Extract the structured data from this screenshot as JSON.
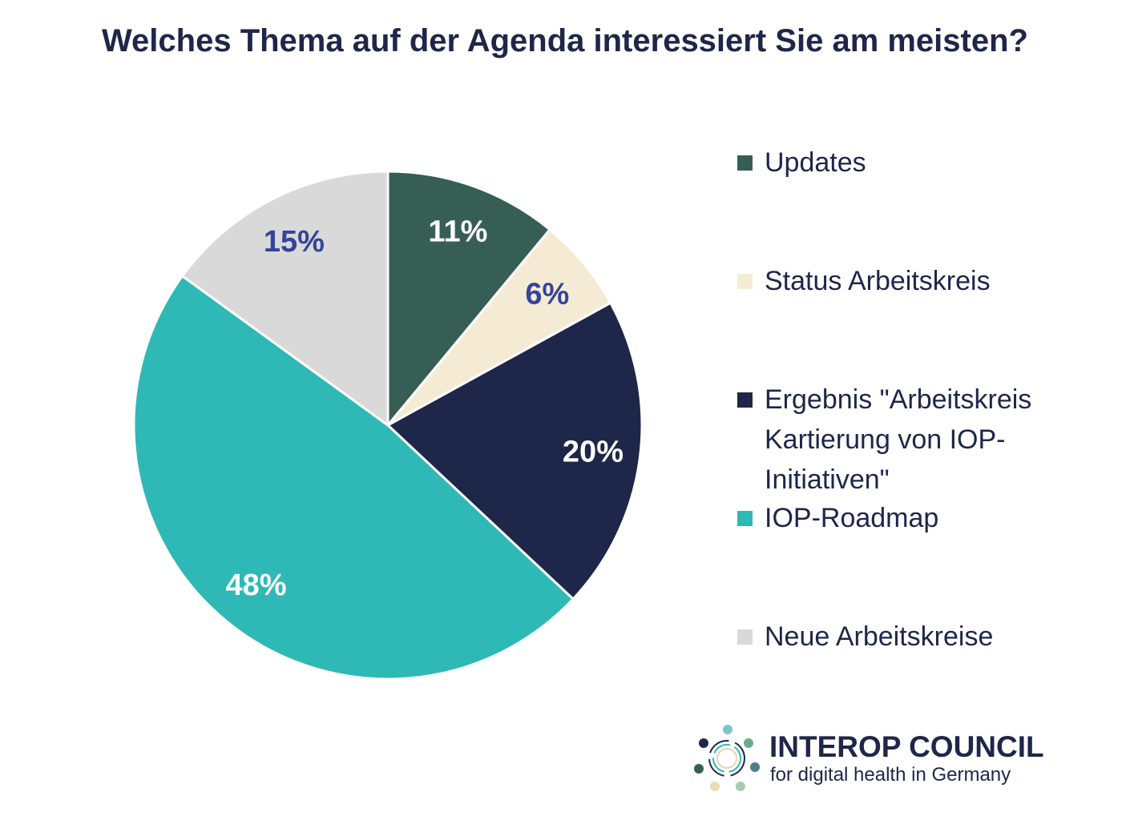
{
  "chart_data": {
    "type": "pie",
    "title": "Welches Thema auf der Agenda interessiert Sie am meisten?",
    "start": "12 o'clock, clockwise",
    "legend_position": "right",
    "slices": [
      {
        "label": "Updates",
        "value": 11,
        "display": "11%",
        "color": "#375E55",
        "label_color": "#FFFFFF"
      },
      {
        "label": "Status Arbeitskreis",
        "value": 6,
        "display": "6%",
        "color": "#F5EBD4",
        "label_color": "#34449A"
      },
      {
        "label": "Ergebnis \"Arbeitskreis Kartierung von IOP-Initiativen\"",
        "legend_lines": [
          "Ergebnis \"Arbeitskreis",
          "Kartierung von IOP-",
          "Initiativen\""
        ],
        "value": 20,
        "display": "20%",
        "color": "#1E2649",
        "label_color": "#FFFFFF"
      },
      {
        "label": "IOP-Roadmap",
        "value": 48,
        "display": "48%",
        "color": "#2EB8B6",
        "label_color": "#FFFFFF"
      },
      {
        "label": "Neue Arbeitskreise",
        "value": 15,
        "display": "15%",
        "color": "#D9D9D9",
        "label_color": "#34449A"
      }
    ]
  },
  "logo": {
    "name": "INTEROP COUNCIL",
    "tagline": "for digital health in Germany"
  }
}
